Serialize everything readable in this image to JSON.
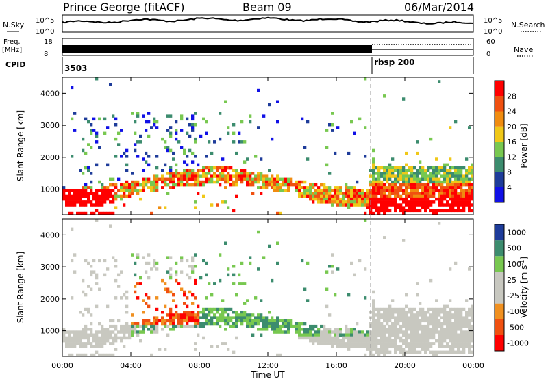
{
  "header": {
    "station": "Prince George (fitACF)",
    "beam": "Beam 09",
    "date": "06/Mar/2014"
  },
  "top_panel": {
    "nsky_label": "N.Sky",
    "nsearch_label": "N.Search",
    "freq_label": "Freq.",
    "freq_unit": "[MHz]",
    "nave_label": "Nave",
    "cpid_label": "CPID",
    "noise_ticks": [
      "10^5",
      "10^0"
    ],
    "freq_ticks": [
      "18",
      "8"
    ],
    "nave_ticks": [
      "60",
      "0"
    ],
    "cpid_segments": [
      {
        "label": "3503",
        "start_hour": 0
      },
      {
        "label": "rbsp 200",
        "start_hour": 18
      }
    ]
  },
  "colors": {
    "power": [
      "#1010e6",
      "#1e3c9a",
      "#3c8c6e",
      "#78c850",
      "#f0c818",
      "#f08c10",
      "#f05010",
      "#ff0000"
    ],
    "velocity": [
      "#ff0000",
      "#f05010",
      "#f09020",
      "#c8c8c0",
      "#c8c8c0",
      "#78c850",
      "#3c8c6e",
      "#1e3c9a"
    ]
  },
  "chart_data": [
    {
      "type": "heatmap",
      "name": "power-panel",
      "ylabel": "Slant Range [km]",
      "xlim": [
        0,
        24
      ],
      "ylim": [
        200,
        4500
      ],
      "y_ticks": [
        1000,
        2000,
        3000,
        4000
      ],
      "colorbar": {
        "label": "Power [dB]",
        "ticks": [
          4,
          8,
          12,
          16,
          20,
          24,
          28
        ],
        "range": [
          0,
          32
        ]
      }
    },
    {
      "type": "heatmap",
      "name": "velocity-panel",
      "ylabel": "Slant Range [km]",
      "xlabel": "Time UT",
      "xlim": [
        0,
        24
      ],
      "ylim": [
        200,
        4500
      ],
      "x_ticks": [
        "00:00",
        "04:00",
        "08:00",
        "12:00",
        "16:00",
        "20:00",
        "00:00"
      ],
      "y_ticks": [
        1000,
        2000,
        3000,
        4000
      ],
      "colorbar": {
        "label": "Velocity [m s^-1]",
        "ticks": [
          "1000",
          "500",
          "100",
          "25",
          "-25",
          "-100",
          "-500",
          "-1000"
        ]
      }
    }
  ]
}
